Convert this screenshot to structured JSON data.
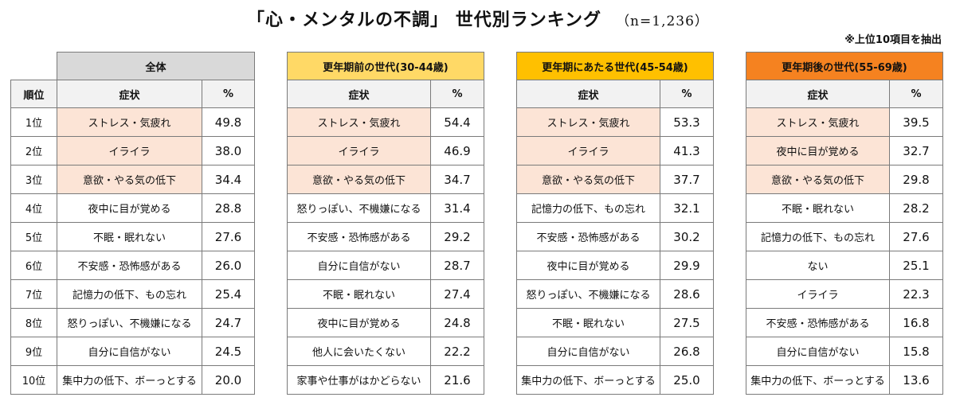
{
  "title": "「心・メンタルの不調」 世代別ランキング",
  "sample": "（n=1,236）",
  "note": "※上位10項目を抽出",
  "rank_header": "順位",
  "ranks": [
    "1位",
    "2位",
    "3位",
    "4位",
    "5位",
    "6位",
    "7位",
    "8位",
    "9位",
    "10位"
  ],
  "colors": {
    "highlight": "#fce4d6",
    "all_header": "#d9d9d9",
    "before_header": "#ffd966",
    "during_header": "#ffc000",
    "after_header": "#f58220"
  },
  "groups": [
    {
      "name": "全体",
      "symptom_header": "症状",
      "pct_header": "%",
      "rows": [
        {
          "symptom": "ストレス・気疲れ",
          "pct": "49.8"
        },
        {
          "symptom": "イライラ",
          "pct": "38.0"
        },
        {
          "symptom": "意欲・やる気の低下",
          "pct": "34.4"
        },
        {
          "symptom": "夜中に目が覚める",
          "pct": "28.8"
        },
        {
          "symptom": "不眠・眠れない",
          "pct": "27.6"
        },
        {
          "symptom": "不安感・恐怖感がある",
          "pct": "26.0"
        },
        {
          "symptom": "記憶力の低下、もの忘れ",
          "pct": "25.4"
        },
        {
          "symptom": "怒りっぽい、不機嫌になる",
          "pct": "24.7"
        },
        {
          "symptom": "自分に自信がない",
          "pct": "24.5"
        },
        {
          "symptom": "集中力の低下、ボーっとする",
          "pct": "20.0"
        }
      ]
    },
    {
      "name": "更年期前の世代(30-44歳)",
      "symptom_header": "症状",
      "pct_header": "%",
      "rows": [
        {
          "symptom": "ストレス・気疲れ",
          "pct": "54.4"
        },
        {
          "symptom": "イライラ",
          "pct": "46.9"
        },
        {
          "symptom": "意欲・やる気の低下",
          "pct": "34.7"
        },
        {
          "symptom": "怒りっぽい、不機嫌になる",
          "pct": "31.4"
        },
        {
          "symptom": "不安感・恐怖感がある",
          "pct": "29.2"
        },
        {
          "symptom": "自分に自信がない",
          "pct": "28.7"
        },
        {
          "symptom": "不眠・眠れない",
          "pct": "27.4"
        },
        {
          "symptom": "夜中に目が覚める",
          "pct": "24.8"
        },
        {
          "symptom": "他人に会いたくない",
          "pct": "22.2"
        },
        {
          "symptom": "家事や仕事がはかどらない",
          "pct": "21.6"
        }
      ]
    },
    {
      "name": "更年期にあたる世代(45-54歳)",
      "symptom_header": "症状",
      "pct_header": "%",
      "rows": [
        {
          "symptom": "ストレス・気疲れ",
          "pct": "53.3"
        },
        {
          "symptom": "イライラ",
          "pct": "41.3"
        },
        {
          "symptom": "意欲・やる気の低下",
          "pct": "37.7"
        },
        {
          "symptom": "記憶力の低下、もの忘れ",
          "pct": "32.1"
        },
        {
          "symptom": "不安感・恐怖感がある",
          "pct": "30.2"
        },
        {
          "symptom": "夜中に目が覚める",
          "pct": "29.9"
        },
        {
          "symptom": "怒りっぽい、不機嫌になる",
          "pct": "28.6"
        },
        {
          "symptom": "不眠・眠れない",
          "pct": "27.5"
        },
        {
          "symptom": "自分に自信がない",
          "pct": "26.8"
        },
        {
          "symptom": "集中力の低下、ボーっとする",
          "pct": "25.0"
        }
      ]
    },
    {
      "name": "更年期後の世代(55-69歳)",
      "symptom_header": "症状",
      "pct_header": "%",
      "rows": [
        {
          "symptom": "ストレス・気疲れ",
          "pct": "39.5"
        },
        {
          "symptom": "夜中に目が覚める",
          "pct": "32.7"
        },
        {
          "symptom": "意欲・やる気の低下",
          "pct": "29.8"
        },
        {
          "symptom": "不眠・眠れない",
          "pct": "28.2"
        },
        {
          "symptom": "記憶力の低下、もの忘れ",
          "pct": "27.6"
        },
        {
          "symptom": "ない",
          "pct": "25.1"
        },
        {
          "symptom": "イライラ",
          "pct": "22.3"
        },
        {
          "symptom": "不安感・恐怖感がある",
          "pct": "16.8"
        },
        {
          "symptom": "自分に自信がない",
          "pct": "15.8"
        },
        {
          "symptom": "集中力の低下、ボーっとする",
          "pct": "13.6"
        }
      ]
    }
  ]
}
